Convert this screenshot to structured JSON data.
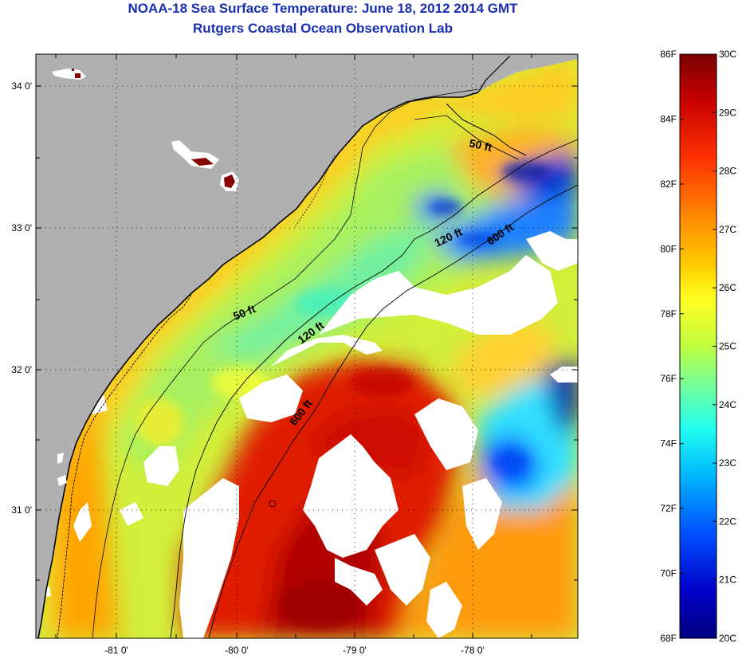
{
  "title": {
    "line1": "NOAA-18 Sea Surface Temperature:  June 18, 2012 2014 GMT",
    "line2": "Rutgers Coastal Ocean Observation Lab"
  },
  "map": {
    "x_ticks": [
      "-81 0'",
      "-80 0'",
      "-79 0'",
      "-78 0'"
    ],
    "y_ticks": [
      "34 0'",
      "33 0'",
      "32 0'",
      "31 0'"
    ],
    "contour_labels": {
      "ft50_north": "50 ft",
      "ft50_south": "50 ft",
      "ft120_north": "120 ft",
      "ft120_south": "120 ft",
      "ft600_north": "600 ft",
      "ft600_south": "600 ft"
    },
    "colors": {
      "land": "#b0b0b0",
      "cloud": "#ffffff",
      "coast": "#000000",
      "title": "#1a2fb0"
    }
  },
  "colorbar": {
    "fahrenheit": [
      "86F",
      "84F",
      "82F",
      "80F",
      "78F",
      "76F",
      "74F",
      "72F",
      "70F",
      "68F"
    ],
    "celsius": [
      "30C",
      "29C",
      "28C",
      "27C",
      "26C",
      "25C",
      "24C",
      "23C",
      "22C",
      "21C",
      "20C"
    ],
    "range_f": [
      68,
      86
    ],
    "range_c": [
      20,
      30
    ],
    "gradient": [
      "#7a0000",
      "#c80000",
      "#ff3300",
      "#ff8a00",
      "#ffcc00",
      "#ffff22",
      "#bfff40",
      "#66ffaa",
      "#22ffee",
      "#00b8ff",
      "#0050ff",
      "#0000b0",
      "#000080"
    ]
  }
}
